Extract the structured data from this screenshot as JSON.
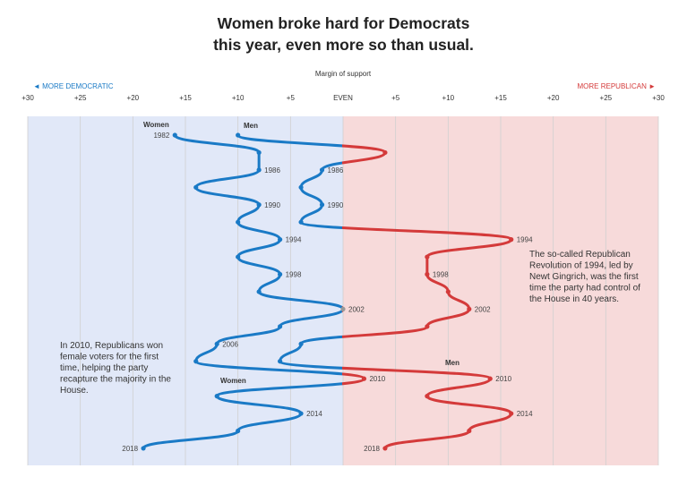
{
  "title": [
    "Women broke hard for Democrats",
    "this year, even more so than usual."
  ],
  "chart_data": {
    "type": "line",
    "xlabel": "Margin of support",
    "left_label": "◄ MORE DEMOCRATIC",
    "right_label": "MORE REPUBLICAN ►",
    "xlim": [
      -30,
      30
    ],
    "xticks": [
      {
        "v": -30,
        "label": "+30"
      },
      {
        "v": -25,
        "label": "+25"
      },
      {
        "v": -20,
        "label": "+20"
      },
      {
        "v": -15,
        "label": "+15"
      },
      {
        "v": -10,
        "label": "+10"
      },
      {
        "v": -5,
        "label": "+5"
      },
      {
        "v": 0,
        "label": "EVEN"
      },
      {
        "v": 5,
        "label": "+5"
      },
      {
        "v": 10,
        "label": "+10"
      },
      {
        "v": 15,
        "label": "+15"
      },
      {
        "v": 20,
        "label": "+20"
      },
      {
        "v": 25,
        "label": "+25"
      },
      {
        "v": 30,
        "label": "+30"
      }
    ],
    "years": [
      1982,
      1984,
      1986,
      1988,
      1990,
      1992,
      1994,
      1996,
      1998,
      2000,
      2002,
      2004,
      2006,
      2008,
      2010,
      2012,
      2014,
      2016,
      2018
    ],
    "grid": true,
    "colors": {
      "democratic": "#1a7ac6",
      "republican": "#d43a3a",
      "even": "#999999",
      "dem_bg": "#e1e8f8",
      "rep_bg": "#f7dada"
    },
    "series": [
      {
        "name": "Women",
        "values": [
          -16,
          -8,
          -8,
          -14,
          -8,
          -10,
          -6,
          -10,
          -6,
          -8,
          0,
          -6,
          -12,
          -14,
          2,
          -12,
          -4,
          -10,
          -19
        ],
        "labeled_years": [
          1982,
          1986,
          1990,
          1994,
          1998,
          2002,
          2006,
          2010,
          2014,
          2018
        ]
      },
      {
        "name": "Men",
        "values": [
          -10,
          4,
          -2,
          -4,
          -2,
          -4,
          16,
          8,
          8,
          10,
          12,
          8,
          -4,
          -6,
          14,
          8,
          16,
          12,
          4
        ],
        "labeled_years": [
          1986,
          1990,
          1994,
          1998,
          2002,
          2010,
          2014,
          2018
        ]
      }
    ],
    "annotations": [
      {
        "lines": [
          "The so-called Republican",
          "Revolution of 1994, led by",
          "Newt Gingrich, was the first",
          "time the party had control of",
          "the House in 40 years."
        ]
      },
      {
        "lines": [
          "In 2010, Republicans won",
          "female voters for the first",
          "time, helping the party",
          "recapture the majority in the",
          "House."
        ]
      }
    ]
  }
}
